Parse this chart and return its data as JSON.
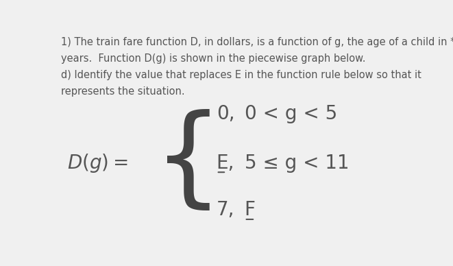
{
  "background_color": "#f0f0f0",
  "text_color": "#555555",
  "header_lines": [
    "1) The train fare function D, in dollars, is a function of g, the age of a child in *",
    "years.  Function D(g) is shown in the piecewise graph below.",
    "d) Identify the value that replaces E in the function rule below so that it",
    "represents the situation."
  ],
  "header_fontsize": 10.5,
  "dg_fontsize": 20,
  "lines_fontsize": 20,
  "fig_width": 6.61,
  "fig_height": 3.88,
  "dpi": 100,
  "brace_color": "#444444",
  "line1_val": "0,",
  "line1_cond": "0 < g < 5",
  "line2_val": "E,",
  "line2_cond": "5 ≤ g < 11",
  "line3_val": "7,",
  "line3_cond": "F"
}
